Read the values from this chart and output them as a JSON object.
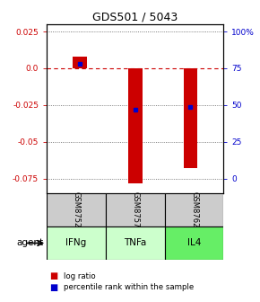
{
  "title": "GDS501 / 5043",
  "samples": [
    "GSM8752",
    "GSM8757",
    "GSM8762"
  ],
  "agents": [
    "IFNg",
    "TNFa",
    "IL4"
  ],
  "log_ratios": [
    0.008,
    -0.078,
    -0.068
  ],
  "percentile_ranks": [
    0.78,
    0.47,
    0.49
  ],
  "ylim": [
    -0.085,
    0.03
  ],
  "yticks_left": [
    0.025,
    0.0,
    -0.025,
    -0.05,
    -0.075
  ],
  "yticks_right_vals": [
    0.025,
    0.0,
    -0.025,
    -0.05,
    -0.075
  ],
  "yticks_right_labels": [
    "100%",
    "75",
    "50",
    "25",
    "0"
  ],
  "bar_color": "#cc0000",
  "percentile_color": "#0000cc",
  "zero_line_color": "#cc0000",
  "grid_color": "#555555",
  "sample_bg": "#cccccc",
  "agent_colors": [
    "#ccffcc",
    "#ccffcc",
    "#66ee66"
  ],
  "left_tick_color": "#cc0000",
  "right_tick_color": "#0000cc",
  "bar_width": 0.25
}
